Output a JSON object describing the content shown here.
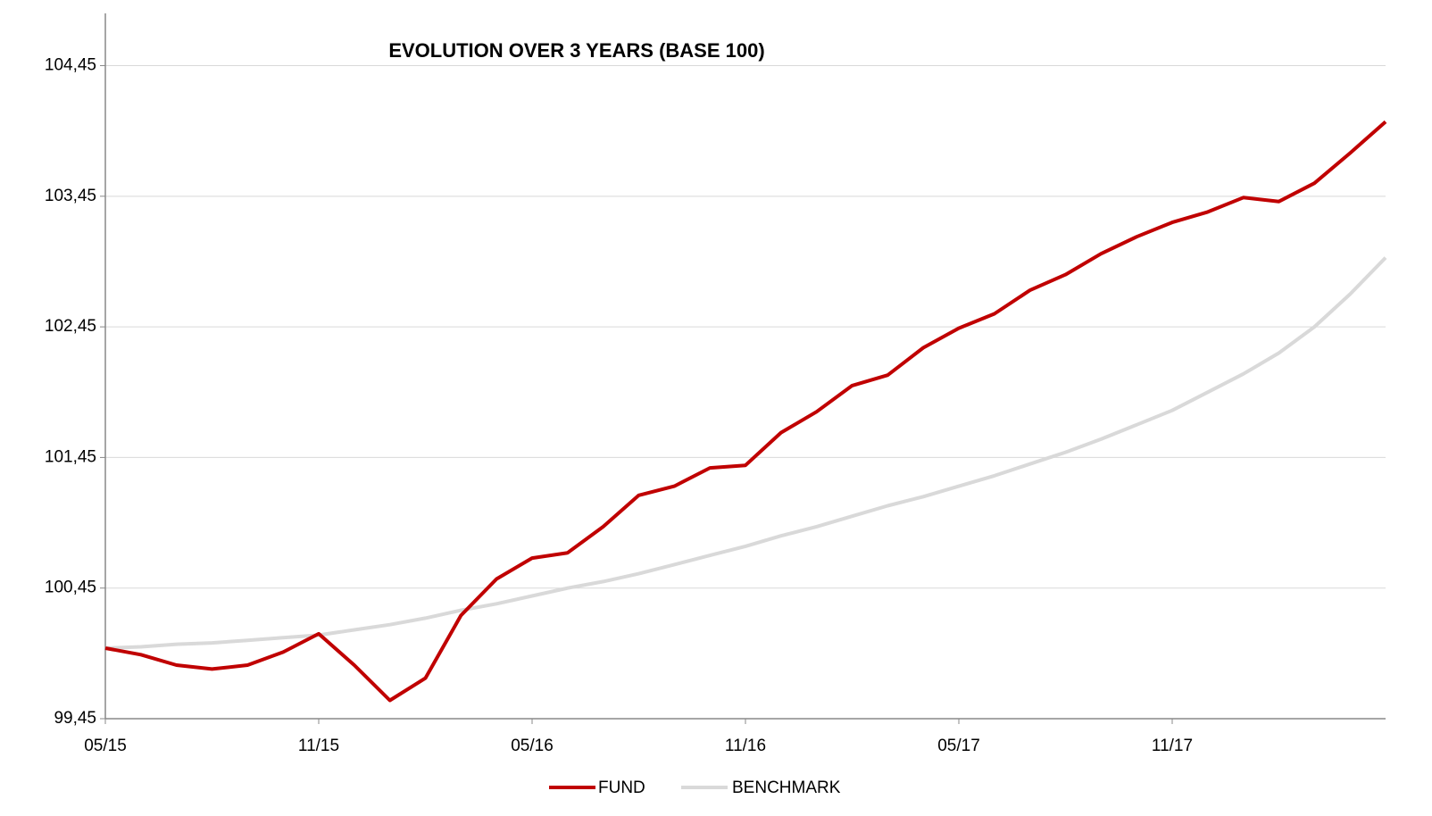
{
  "chart_data": {
    "type": "line",
    "title": "EVOLUTION OVER 3 YEARS (BASE 100)",
    "categories": [
      "05/15",
      null,
      null,
      null,
      null,
      null,
      "11/15",
      null,
      null,
      null,
      null,
      null,
      "05/16",
      null,
      null,
      null,
      null,
      null,
      "11/16",
      null,
      null,
      null,
      null,
      null,
      "05/17",
      null,
      null,
      null,
      null,
      null,
      "11/17",
      null,
      null,
      null,
      null,
      null,
      null
    ],
    "series": [
      {
        "name": "FUND",
        "color": "#c00000",
        "values": [
          99.99,
          99.94,
          99.86,
          99.83,
          99.86,
          99.96,
          100.1,
          99.86,
          99.59,
          99.76,
          100.24,
          100.52,
          100.68,
          100.72,
          100.92,
          101.16,
          101.23,
          101.37,
          101.39,
          101.64,
          101.8,
          102.0,
          102.08,
          102.29,
          102.44,
          102.55,
          102.73,
          102.85,
          103.01,
          103.14,
          103.25,
          103.33,
          103.44,
          103.41,
          103.55,
          103.78,
          104.02
        ]
      },
      {
        "name": "BENCHMARK",
        "color": "#d9d9d9",
        "values": [
          99.99,
          100.0,
          100.02,
          100.03,
          100.05,
          100.07,
          100.09,
          100.13,
          100.17,
          100.22,
          100.28,
          100.33,
          100.39,
          100.45,
          100.5,
          100.56,
          100.63,
          100.7,
          100.77,
          100.85,
          100.92,
          101.0,
          101.08,
          101.15,
          101.23,
          101.31,
          101.4,
          101.49,
          101.59,
          101.7,
          101.81,
          101.95,
          102.09,
          102.25,
          102.45,
          102.7,
          102.98
        ]
      }
    ],
    "ylim": [
      99.45,
      104.85
    ],
    "yticks": [
      {
        "value": 99.45,
        "label": "99,45"
      },
      {
        "value": 100.45,
        "label": "100,45"
      },
      {
        "value": 101.45,
        "label": "101,45"
      },
      {
        "value": 102.45,
        "label": "102,45"
      },
      {
        "value": 103.45,
        "label": "103,45"
      },
      {
        "value": 104.45,
        "label": "104,45"
      }
    ],
    "grid": true,
    "legend": "bottom"
  }
}
